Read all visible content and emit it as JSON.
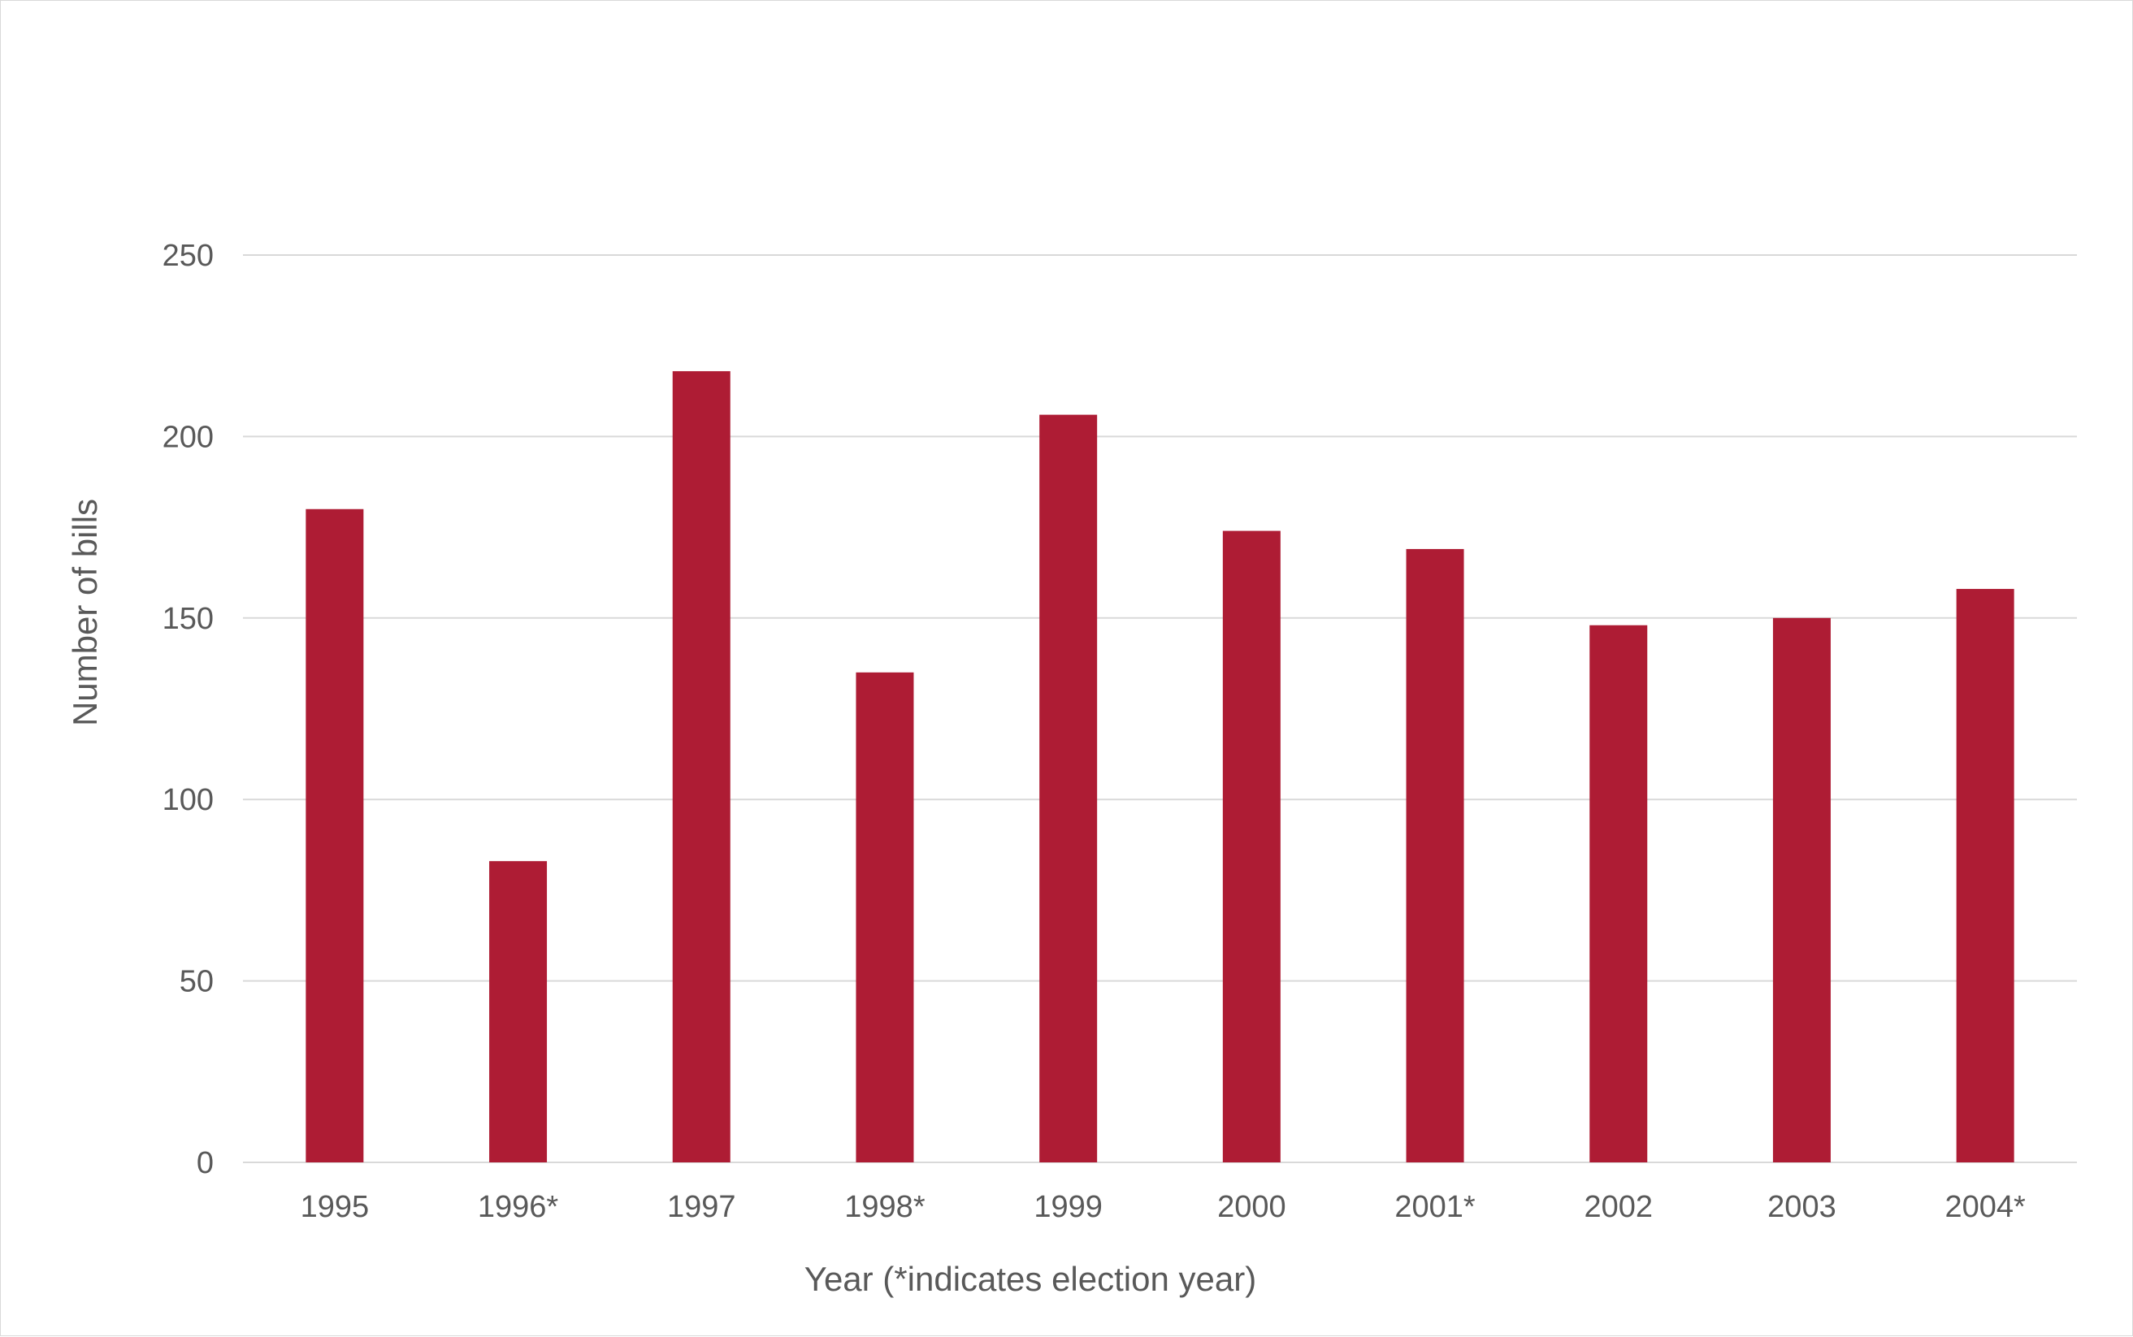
{
  "colors": {
    "bar": "#ae1c34",
    "grid": "#d9d9d9",
    "text": "#595959",
    "border": "#d9d9d9"
  },
  "chart_data": {
    "type": "bar",
    "title": "",
    "xlabel": "Year (*indicates election year)",
    "ylabel": "Number of bills",
    "categories": [
      "1995",
      "1996*",
      "1997",
      "1998*",
      "1999",
      "2000",
      "2001*",
      "2002",
      "2003",
      "2004*"
    ],
    "values": [
      180,
      83,
      218,
      135,
      206,
      174,
      169,
      148,
      150,
      158
    ],
    "ylim": [
      0,
      250
    ],
    "yticks": [
      "0",
      "50",
      "100",
      "150",
      "200",
      "250"
    ],
    "grid": true,
    "legend": "none"
  }
}
